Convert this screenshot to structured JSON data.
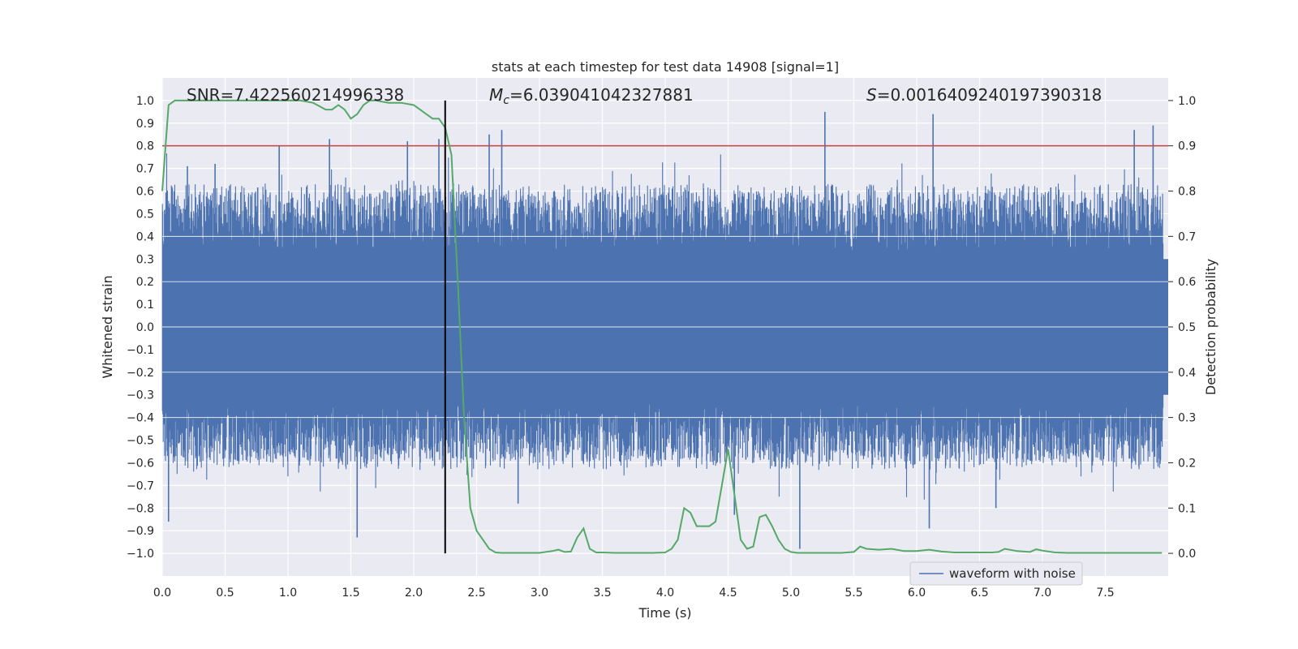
{
  "chart_data": {
    "type": "line",
    "title": "stats at each timestep for test data 14908 [signal=1]",
    "xlabel": "Time (s)",
    "ylabel": "Whitened strain",
    "y2label": "Detection probability",
    "xlim": [
      0,
      8
    ],
    "ylim": [
      -1.1,
      1.1
    ],
    "y2lim": [
      -0.05,
      1.05
    ],
    "x_ticks": [
      "0.0",
      "0.5",
      "1.0",
      "1.5",
      "2.0",
      "2.5",
      "3.0",
      "3.5",
      "4.0",
      "4.5",
      "5.0",
      "5.5",
      "6.0",
      "6.5",
      "7.0",
      "7.5"
    ],
    "y_ticks": [
      "1.0",
      "0.9",
      "0.8",
      "0.7",
      "0.6",
      "0.5",
      "0.4",
      "0.3",
      "0.2",
      "0.1",
      "0.0",
      "−0.1",
      "−0.2",
      "−0.3",
      "−0.4",
      "−0.5",
      "−0.6",
      "−0.7",
      "−0.8",
      "−0.9",
      "−1.0"
    ],
    "y2_ticks": [
      "1.0",
      "0.9",
      "0.8",
      "0.7",
      "0.6",
      "0.5",
      "0.4",
      "0.3",
      "0.2",
      "0.1",
      "0.0"
    ],
    "annotations": {
      "snr": "SNR=7.422560214996338",
      "mc_symbol": "M",
      "mc_subscript": "c",
      "mc_value": "=6.039041042327881",
      "s_symbol": "S",
      "s_value": "=0.0016409240197390318"
    },
    "legend": {
      "position": "lower-right",
      "entries": [
        "waveform with noise"
      ]
    },
    "grid": true,
    "threshold_line": {
      "y": 0.8,
      "color": "#c44e52"
    },
    "vertical_marker": {
      "x": 2.25,
      "color": "#000000"
    },
    "series": [
      {
        "name": "waveform with noise",
        "color": "#4c72b0",
        "render": "dense-noise",
        "envelope_core": 0.3,
        "peaks": [
          {
            "x": 0.2,
            "y": 0.71
          },
          {
            "x": 0.05,
            "y": -0.86
          },
          {
            "x": 0.42,
            "y": 0.72
          },
          {
            "x": 0.93,
            "y": 0.8
          },
          {
            "x": 1.33,
            "y": 0.83
          },
          {
            "x": 1.55,
            "y": -0.93
          },
          {
            "x": 1.95,
            "y": 0.82
          },
          {
            "x": 2.2,
            "y": 0.83
          },
          {
            "x": 2.6,
            "y": 0.85
          },
          {
            "x": 2.7,
            "y": 0.87
          },
          {
            "x": 2.83,
            "y": -0.78
          },
          {
            "x": 5.27,
            "y": 0.95
          },
          {
            "x": 5.07,
            "y": -0.98
          },
          {
            "x": 6.13,
            "y": 0.94
          },
          {
            "x": 6.1,
            "y": -0.89
          },
          {
            "x": 6.63,
            "y": -0.8
          },
          {
            "x": 7.73,
            "y": 0.87
          },
          {
            "x": 7.88,
            "y": 0.89
          },
          {
            "x": 4.55,
            "y": -0.83
          }
        ]
      },
      {
        "name": "",
        "color": "#55a868",
        "axis": "right",
        "x": [
          0.0,
          0.05,
          0.1,
          0.2,
          0.3,
          0.5,
          0.7,
          0.9,
          1.1,
          1.2,
          1.3,
          1.35,
          1.4,
          1.45,
          1.5,
          1.55,
          1.6,
          1.65,
          1.7,
          1.8,
          1.9,
          2.0,
          2.05,
          2.1,
          2.15,
          2.2,
          2.25,
          2.3,
          2.35,
          2.4,
          2.45,
          2.5,
          2.55,
          2.6,
          2.65,
          2.7,
          2.75,
          2.8,
          2.9,
          3.0,
          3.1,
          3.15,
          3.2,
          3.25,
          3.3,
          3.35,
          3.4,
          3.45,
          3.5,
          3.6,
          3.7,
          3.8,
          3.9,
          4.0,
          4.05,
          4.1,
          4.15,
          4.2,
          4.25,
          4.3,
          4.35,
          4.4,
          4.45,
          4.5,
          4.55,
          4.6,
          4.65,
          4.7,
          4.75,
          4.8,
          4.85,
          4.9,
          4.95,
          5.0,
          5.05,
          5.1,
          5.2,
          5.3,
          5.4,
          5.5,
          5.55,
          5.6,
          5.7,
          5.8,
          5.9,
          6.0,
          6.1,
          6.2,
          6.3,
          6.4,
          6.5,
          6.6,
          6.65,
          6.7,
          6.8,
          6.9,
          6.95,
          7.0,
          7.1,
          7.2,
          7.4,
          7.6,
          7.8,
          7.95
        ],
        "y": [
          0.8,
          0.99,
          1.0,
          1.0,
          1.0,
          1.0,
          1.0,
          1.0,
          1.0,
          0.995,
          0.98,
          0.98,
          0.99,
          0.98,
          0.96,
          0.97,
          0.99,
          1.0,
          1.0,
          0.995,
          0.995,
          0.99,
          0.98,
          0.97,
          0.96,
          0.96,
          0.94,
          0.88,
          0.6,
          0.3,
          0.1,
          0.05,
          0.03,
          0.01,
          0.002,
          0.001,
          0.001,
          0.001,
          0.001,
          0.001,
          0.005,
          0.008,
          0.003,
          0.004,
          0.035,
          0.055,
          0.01,
          0.002,
          0.002,
          0.001,
          0.001,
          0.001,
          0.001,
          0.002,
          0.01,
          0.03,
          0.1,
          0.09,
          0.06,
          0.06,
          0.06,
          0.07,
          0.15,
          0.23,
          0.13,
          0.03,
          0.01,
          0.015,
          0.08,
          0.085,
          0.06,
          0.03,
          0.01,
          0.003,
          0.001,
          0.001,
          0.001,
          0.001,
          0.001,
          0.003,
          0.015,
          0.01,
          0.008,
          0.01,
          0.005,
          0.005,
          0.008,
          0.004,
          0.002,
          0.002,
          0.002,
          0.002,
          0.003,
          0.01,
          0.005,
          0.003,
          0.009,
          0.006,
          0.002,
          0.001,
          0.001,
          0.001,
          0.001,
          0.001
        ]
      }
    ]
  }
}
